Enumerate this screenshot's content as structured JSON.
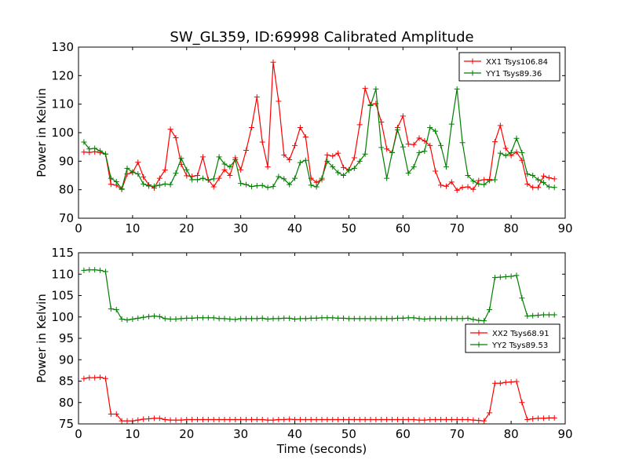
{
  "title": "SW_GL359, ID:69998 Calibrated Amplitude",
  "colors": {
    "red": "#ff0000",
    "green": "#007f00"
  },
  "chart_data": [
    {
      "type": "line",
      "ylabel": "Power in Kelvin",
      "xlabel": "",
      "xlim": [
        0,
        90
      ],
      "ylim": [
        70,
        130
      ],
      "xticks": [
        0,
        10,
        20,
        30,
        40,
        50,
        60,
        70,
        80,
        90
      ],
      "yticks": [
        70,
        80,
        90,
        100,
        110,
        120,
        130
      ],
      "legend": "top-right",
      "grid": false,
      "x": [
        1,
        2,
        3,
        4,
        5,
        6,
        7,
        8,
        9,
        10,
        11,
        12,
        13,
        14,
        15,
        16,
        17,
        18,
        19,
        20,
        21,
        22,
        23,
        24,
        25,
        26,
        27,
        28,
        29,
        30,
        31,
        32,
        33,
        34,
        35,
        36,
        37,
        38,
        39,
        40,
        41,
        42,
        43,
        44,
        45,
        46,
        47,
        48,
        49,
        50,
        51,
        52,
        53,
        54,
        55,
        56,
        57,
        58,
        59,
        60,
        61,
        62,
        63,
        64,
        65,
        66,
        67,
        68,
        69,
        70,
        71,
        72,
        73,
        74,
        75,
        76,
        77,
        78,
        79,
        80,
        81,
        82,
        83,
        84,
        85,
        86,
        87,
        88
      ],
      "series": [
        {
          "name": "XX1 Tsys106.84",
          "color": "#ff0000",
          "values": [
            93.2,
            93.1,
            93.3,
            93.0,
            92.5,
            81.9,
            81.6,
            80.1,
            85.5,
            86.0,
            89.6,
            84.5,
            81.7,
            80.6,
            84.0,
            86.9,
            101.2,
            98.2,
            88.9,
            84.9,
            84.7,
            85.0,
            91.5,
            83.5,
            81.0,
            84.0,
            87.0,
            85.0,
            91.2,
            87.0,
            93.8,
            101.8,
            112.5,
            96.7,
            88.0,
            124.7,
            111.0,
            92.2,
            90.5,
            95.5,
            101.8,
            98.5,
            84.0,
            82.6,
            83.5,
            92.2,
            91.8,
            92.8,
            87.8,
            87.0,
            91.2,
            102.8,
            115.5,
            109.8,
            110.2,
            103.7,
            94.3,
            93.0,
            101.8,
            105.8,
            96.0,
            95.8,
            98.1,
            97.1,
            95.5,
            86.5,
            81.6,
            81.2,
            82.7,
            79.8,
            80.8,
            81.0,
            80.1,
            83.2,
            83.5,
            83.6,
            96.8,
            102.5,
            94.5,
            92.0,
            93.2,
            90.3,
            82.0,
            80.8,
            80.8,
            84.8,
            84.2,
            83.8
          ]
        },
        {
          "name": "YY1 Tsys89.36",
          "color": "#007f00",
          "values": [
            96.7,
            94.3,
            94.5,
            93.6,
            92.5,
            84.0,
            82.8,
            80.3,
            87.5,
            86.2,
            85.5,
            82.0,
            81.3,
            81.2,
            81.6,
            82.0,
            81.8,
            85.8,
            91.0,
            87.0,
            83.5,
            83.5,
            84.0,
            83.4,
            83.8,
            91.5,
            89.0,
            88.0,
            90.5,
            82.2,
            81.8,
            81.1,
            81.4,
            81.5,
            80.8,
            81.1,
            84.6,
            83.8,
            81.8,
            84.0,
            89.5,
            90.3,
            81.6,
            81.0,
            84.0,
            90.0,
            88.0,
            86.0,
            85.0,
            86.8,
            87.5,
            90.0,
            92.5,
            109.5,
            115.3,
            94.8,
            84.0,
            93.0,
            101.0,
            95.0,
            85.8,
            88.0,
            93.0,
            93.5,
            101.8,
            100.5,
            95.5,
            88.0,
            103.0,
            115.3,
            96.5,
            85.0,
            83.0,
            82.0,
            81.8,
            83.2,
            83.5,
            92.8,
            92.0,
            93.0,
            98.0,
            93.0,
            85.5,
            85.0,
            83.5,
            82.5,
            81.0,
            80.8
          ]
        }
      ]
    },
    {
      "type": "line",
      "ylabel": "Power in Kelvin",
      "xlabel": "Time (seconds)",
      "xlim": [
        0,
        90
      ],
      "ylim": [
        75,
        115
      ],
      "xticks": [
        0,
        10,
        20,
        30,
        40,
        50,
        60,
        70,
        80,
        90
      ],
      "yticks": [
        75,
        80,
        85,
        90,
        95,
        100,
        105,
        110,
        115
      ],
      "legend": "center-right",
      "grid": false,
      "x": [
        1,
        2,
        3,
        4,
        5,
        6,
        7,
        8,
        9,
        10,
        11,
        12,
        13,
        14,
        15,
        16,
        17,
        18,
        19,
        20,
        21,
        22,
        23,
        24,
        25,
        26,
        27,
        28,
        29,
        30,
        31,
        32,
        33,
        34,
        35,
        36,
        37,
        38,
        39,
        40,
        41,
        42,
        43,
        44,
        45,
        46,
        47,
        48,
        49,
        50,
        51,
        52,
        53,
        54,
        55,
        56,
        57,
        58,
        59,
        60,
        61,
        62,
        63,
        64,
        65,
        66,
        67,
        68,
        69,
        70,
        71,
        72,
        73,
        74,
        75,
        76,
        77,
        78,
        79,
        80,
        81,
        82,
        83,
        84,
        85,
        86,
        87,
        88
      ],
      "series": [
        {
          "name": "XX2 Tsys68.91",
          "color": "#ff0000",
          "values": [
            85.6,
            85.8,
            85.8,
            85.9,
            85.6,
            77.3,
            77.3,
            75.7,
            75.7,
            75.7,
            75.9,
            76.1,
            76.2,
            76.3,
            76.3,
            76.0,
            75.9,
            75.9,
            75.9,
            76.0,
            76.0,
            76.0,
            76.0,
            76.0,
            76.0,
            76.0,
            76.0,
            76.0,
            76.0,
            76.0,
            76.0,
            76.0,
            76.0,
            76.0,
            75.9,
            75.9,
            76.0,
            76.0,
            76.1,
            76.0,
            76.0,
            76.0,
            76.0,
            76.0,
            76.0,
            76.0,
            76.0,
            76.0,
            76.0,
            76.0,
            76.0,
            76.0,
            76.0,
            76.0,
            76.0,
            76.0,
            76.0,
            76.0,
            76.0,
            76.0,
            76.0,
            76.0,
            75.9,
            75.9,
            76.0,
            76.0,
            76.0,
            76.0,
            76.0,
            76.0,
            76.0,
            76.0,
            75.9,
            75.8,
            75.7,
            77.6,
            84.5,
            84.5,
            84.7,
            84.8,
            84.9,
            80.0,
            76.0,
            76.2,
            76.3,
            76.3,
            76.4,
            76.4
          ]
        },
        {
          "name": "YY2 Tsys89.53",
          "color": "#007f00",
          "values": [
            110.9,
            111.0,
            111.0,
            110.9,
            110.6,
            101.9,
            101.7,
            99.5,
            99.3,
            99.5,
            99.7,
            99.9,
            100.1,
            100.2,
            100.1,
            99.6,
            99.5,
            99.5,
            99.6,
            99.7,
            99.7,
            99.8,
            99.8,
            99.8,
            99.8,
            99.6,
            99.6,
            99.5,
            99.4,
            99.6,
            99.6,
            99.6,
            99.6,
            99.7,
            99.5,
            99.6,
            99.6,
            99.7,
            99.7,
            99.5,
            99.6,
            99.6,
            99.7,
            99.7,
            99.8,
            99.8,
            99.8,
            99.7,
            99.7,
            99.6,
            99.6,
            99.6,
            99.6,
            99.6,
            99.6,
            99.6,
            99.6,
            99.6,
            99.7,
            99.7,
            99.8,
            99.8,
            99.6,
            99.5,
            99.6,
            99.6,
            99.6,
            99.6,
            99.6,
            99.6,
            99.6,
            99.7,
            99.4,
            99.2,
            99.1,
            101.7,
            109.2,
            109.3,
            109.4,
            109.5,
            109.7,
            104.4,
            100.2,
            100.3,
            100.4,
            100.5,
            100.5,
            100.5
          ]
        }
      ]
    }
  ]
}
